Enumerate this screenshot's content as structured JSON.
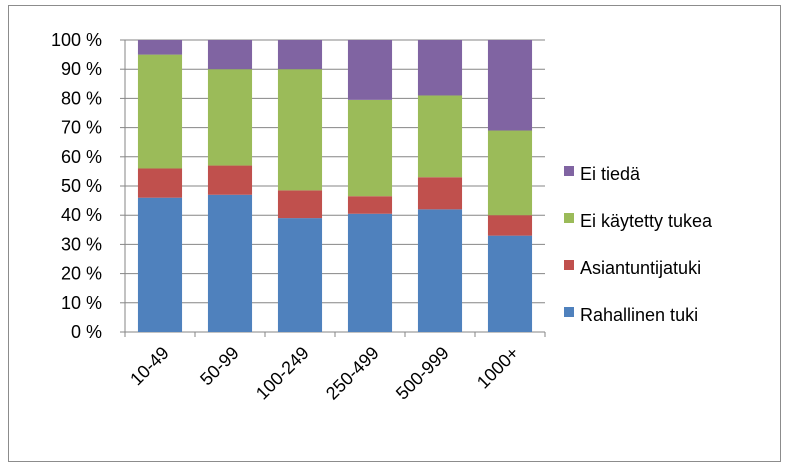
{
  "chart_data": {
    "type": "bar",
    "stacked": true,
    "categories": [
      "10-49",
      "50-99",
      "100-249",
      "250-499",
      "500-999",
      "1000+"
    ],
    "series": [
      {
        "name": "Rahallinen tuki",
        "color": "#4f81bd",
        "values": [
          46,
          47,
          39,
          40.5,
          42,
          33
        ]
      },
      {
        "name": "Asiantuntijatuki",
        "color": "#c0504d",
        "values": [
          10,
          10,
          9.5,
          6,
          11,
          7
        ]
      },
      {
        "name": "Ei käytetty tukea",
        "color": "#9bbb59",
        "values": [
          39,
          33,
          41.5,
          33,
          28,
          29
        ]
      },
      {
        "name": "Ei tiedä",
        "color": "#8064a2",
        "values": [
          5,
          10,
          10,
          20.5,
          19,
          31
        ]
      }
    ],
    "yticks": [
      "0 %",
      "10 %",
      "20 %",
      "30 %",
      "40 %",
      "50 %",
      "60 %",
      "70 %",
      "80 %",
      "90 %",
      "100 %"
    ],
    "ylim": [
      0,
      100
    ],
    "legend_position": "right",
    "legend_order": [
      "Ei tiedä",
      "Ei käytetty tukea",
      "Asiantuntijatuki",
      "Rahallinen tuki"
    ],
    "grid": "horizontal"
  }
}
